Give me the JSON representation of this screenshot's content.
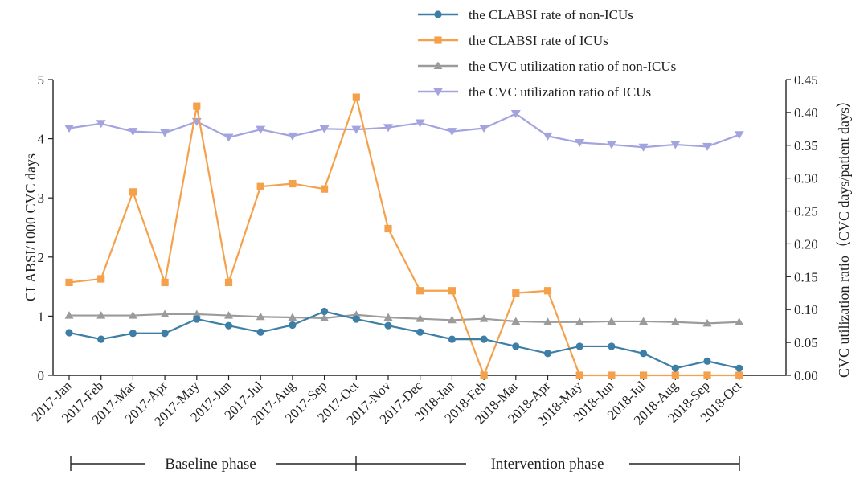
{
  "chart_data": {
    "type": "line",
    "title": "",
    "categories": [
      "2017-Jan",
      "2017-Feb",
      "2017-Mar",
      "2017-Apr",
      "2017-May",
      "2017-Jun",
      "2017-Jul",
      "2017-Aug",
      "2017-Sep",
      "2017-Oct",
      "2017-Nov",
      "2017-Dec",
      "2018-Jan",
      "2018-Feb",
      "2018-Mar",
      "2018-Apr",
      "2018-May",
      "2018-Jun",
      "2018-Jul",
      "2018-Aug",
      "2018-Sep",
      "2018-Oct"
    ],
    "y_left": {
      "label": "CLABSI/1000 CVC days",
      "ylim": [
        0,
        5
      ],
      "ticks": [
        "0",
        "1",
        "2",
        "3",
        "4",
        "5"
      ]
    },
    "y_right": {
      "label": "CVC utilization ratio（CVC days/patient days）",
      "ylim": [
        0,
        0.45
      ],
      "ticks": [
        "0.00",
        "0.05",
        "0.10",
        "0.15",
        "0.20",
        "0.25",
        "0.30",
        "0.35",
        "0.40",
        "0.45"
      ]
    },
    "series": [
      {
        "name": "the CLABSI rate of non-ICUs",
        "axis": "left",
        "marker": "circle",
        "color": "#3c7ea6",
        "values": [
          0.72,
          0.61,
          0.71,
          0.71,
          0.95,
          0.84,
          0.73,
          0.85,
          1.08,
          0.95,
          0.84,
          0.73,
          0.61,
          0.61,
          0.49,
          0.37,
          0.49,
          0.49,
          0.37,
          0.12,
          0.24,
          0.12
        ]
      },
      {
        "name": "the CLABSI rate of ICUs",
        "axis": "left",
        "marker": "square",
        "color": "#f5a04b",
        "values": [
          1.57,
          1.63,
          3.1,
          1.57,
          4.55,
          1.57,
          3.19,
          3.24,
          3.15,
          4.7,
          2.48,
          1.43,
          1.43,
          0.0,
          1.39,
          1.43,
          0.0,
          0.0,
          0.0,
          0.0,
          0.0,
          0.0
        ]
      },
      {
        "name": "the CVC utilization ratio of non-ICUs",
        "axis": "right",
        "marker": "triangle-up",
        "color": "#9b9b9b",
        "values": [
          0.091,
          0.091,
          0.091,
          0.093,
          0.093,
          0.091,
          0.089,
          0.088,
          0.087,
          0.092,
          0.088,
          0.086,
          0.084,
          0.086,
          0.082,
          0.081,
          0.081,
          0.082,
          0.082,
          0.081,
          0.079,
          0.081
        ]
      },
      {
        "name": "the CVC utilization ratio of ICUs",
        "axis": "right",
        "marker": "triangle-down",
        "color": "#a3a3e0",
        "values": [
          0.376,
          0.383,
          0.371,
          0.369,
          0.386,
          0.362,
          0.374,
          0.364,
          0.375,
          0.374,
          0.377,
          0.384,
          0.371,
          0.376,
          0.398,
          0.364,
          0.354,
          0.351,
          0.347,
          0.351,
          0.348,
          0.366
        ]
      }
    ],
    "phases": [
      {
        "label": "Baseline phase"
      },
      {
        "label": "Intervention phase"
      }
    ],
    "grid": false,
    "legend_position": "top-center"
  }
}
